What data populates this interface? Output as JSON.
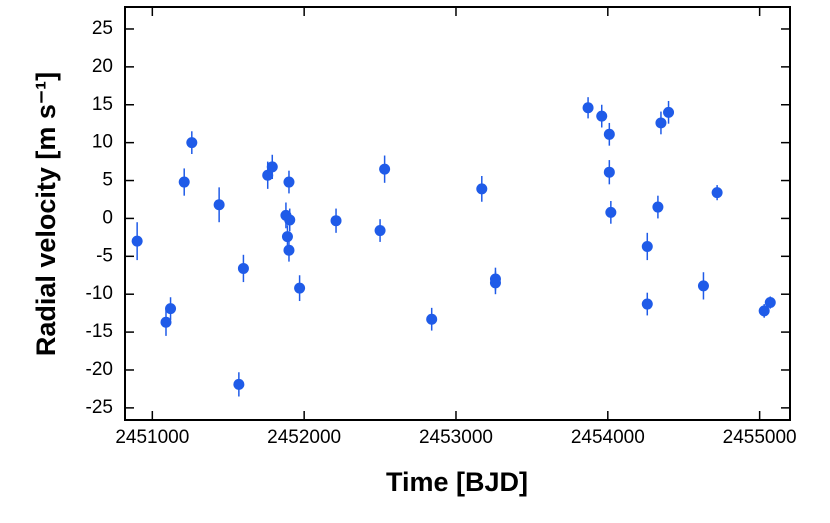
{
  "chart_data": {
    "type": "scatter",
    "xlabel": "Time [BJD]",
    "ylabel": "Radial velocity [m s⁻¹]",
    "xlim": [
      2450820,
      2455200
    ],
    "ylim": [
      -26.6,
      27.9
    ],
    "xticks": [
      2451000,
      2452000,
      2453000,
      2454000,
      2455000
    ],
    "yticks": [
      -25,
      -20,
      -15,
      -10,
      -5,
      0,
      5,
      10,
      15,
      20,
      25
    ],
    "series": [
      {
        "color": "#1f5be8",
        "x": [
          2450900,
          2451090,
          2451120,
          2451210,
          2451260,
          2451440,
          2451570,
          2451600,
          2451760,
          2451790,
          2451880,
          2451890,
          2451900,
          2451900,
          2451905,
          2451970,
          2452210,
          2452500,
          2452530,
          2452840,
          2453170,
          2453260,
          2453260,
          2453870,
          2453960,
          2454010,
          2454010,
          2454020,
          2454260,
          2454260,
          2454330,
          2454350,
          2454400,
          2454630,
          2454720,
          2455030,
          2455070
        ],
        "values": [
          -3,
          -13.7,
          -11.9,
          4.8,
          10,
          1.8,
          -21.9,
          -6.6,
          5.7,
          6.8,
          0.4,
          -2.4,
          -4.2,
          4.8,
          -0.2,
          -9.2,
          -0.3,
          -1.6,
          6.5,
          -13.3,
          3.9,
          -8,
          -8.5,
          14.6,
          13.5,
          11.1,
          6.1,
          0.8,
          -3.7,
          -11.3,
          1.5,
          12.6,
          14,
          -8.9,
          3.4,
          -12.2,
          -11.1
        ],
        "errors": [
          2.5,
          1.8,
          1.5,
          1.8,
          1.5,
          2.3,
          1.6,
          1.8,
          1.8,
          1.6,
          1.7,
          1.5,
          1.5,
          1.5,
          1.5,
          1.7,
          1.6,
          1.5,
          1.8,
          1.5,
          1.7,
          1.5,
          1.5,
          1.4,
          1.5,
          1.5,
          1.6,
          1.5,
          1.8,
          1.5,
          1.5,
          1.5,
          1.5,
          1.8,
          1,
          0.9,
          0.8
        ]
      }
    ]
  }
}
